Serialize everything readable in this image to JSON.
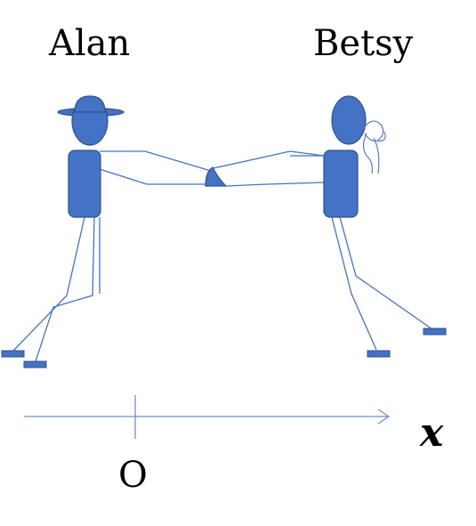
{
  "people": {
    "left": {
      "name": "Alan"
    },
    "right": {
      "name": "Betsy"
    }
  },
  "axis": {
    "variable": "x",
    "origin": "O"
  },
  "colors": {
    "figure_fill": "#4472C4",
    "figure_stroke": "#2F528F",
    "line": "#4472C4",
    "axis_line": "#6F8FC9"
  }
}
